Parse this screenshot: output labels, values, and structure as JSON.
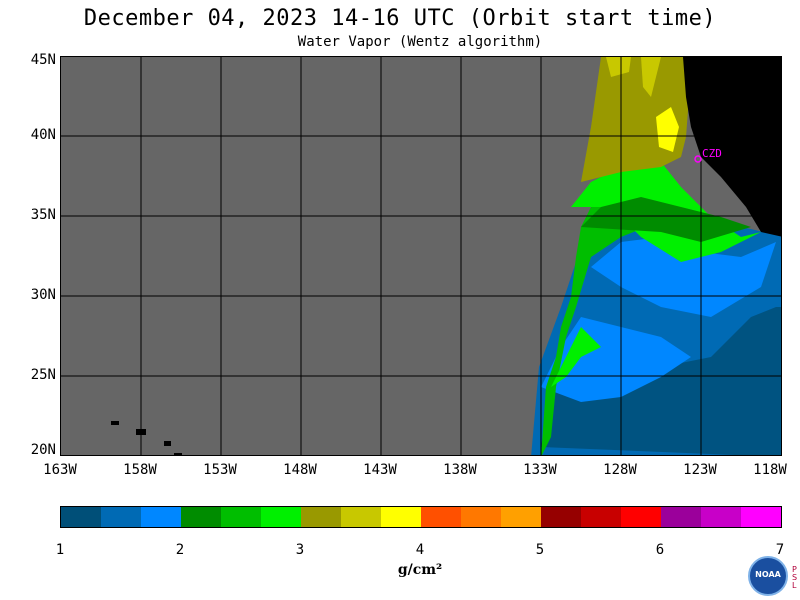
{
  "header": {
    "title": "December 04, 2023  14-16 UTC  (Orbit start time)",
    "subtitle": "Water Vapor (Wentz algorithm)"
  },
  "map": {
    "lat_labels": [
      "45N",
      "40N",
      "35N",
      "30N",
      "25N",
      "20N"
    ],
    "lon_labels": [
      "163W",
      "158W",
      "153W",
      "148W",
      "143W",
      "138W",
      "133W",
      "128W",
      "123W",
      "118W"
    ],
    "station_label": "CZD",
    "no_data_color": "#666666",
    "land_color": "#000000"
  },
  "colorbar": {
    "tick_labels": [
      "1",
      "2",
      "3",
      "4",
      "5",
      "6",
      "7"
    ],
    "unit": "g/cm²",
    "colors": [
      "#004f78",
      "#006ab4",
      "#0087ff",
      "#008c00",
      "#00be00",
      "#00f000",
      "#999900",
      "#c8c800",
      "#ffff00",
      "#ff5000",
      "#ff7800",
      "#ffa000",
      "#960000",
      "#c80000",
      "#ff0000",
      "#9b009b",
      "#c800c8",
      "#ff00ff"
    ]
  },
  "footer": {
    "logo_text": "NOAA",
    "psl_text": "PSL"
  }
}
